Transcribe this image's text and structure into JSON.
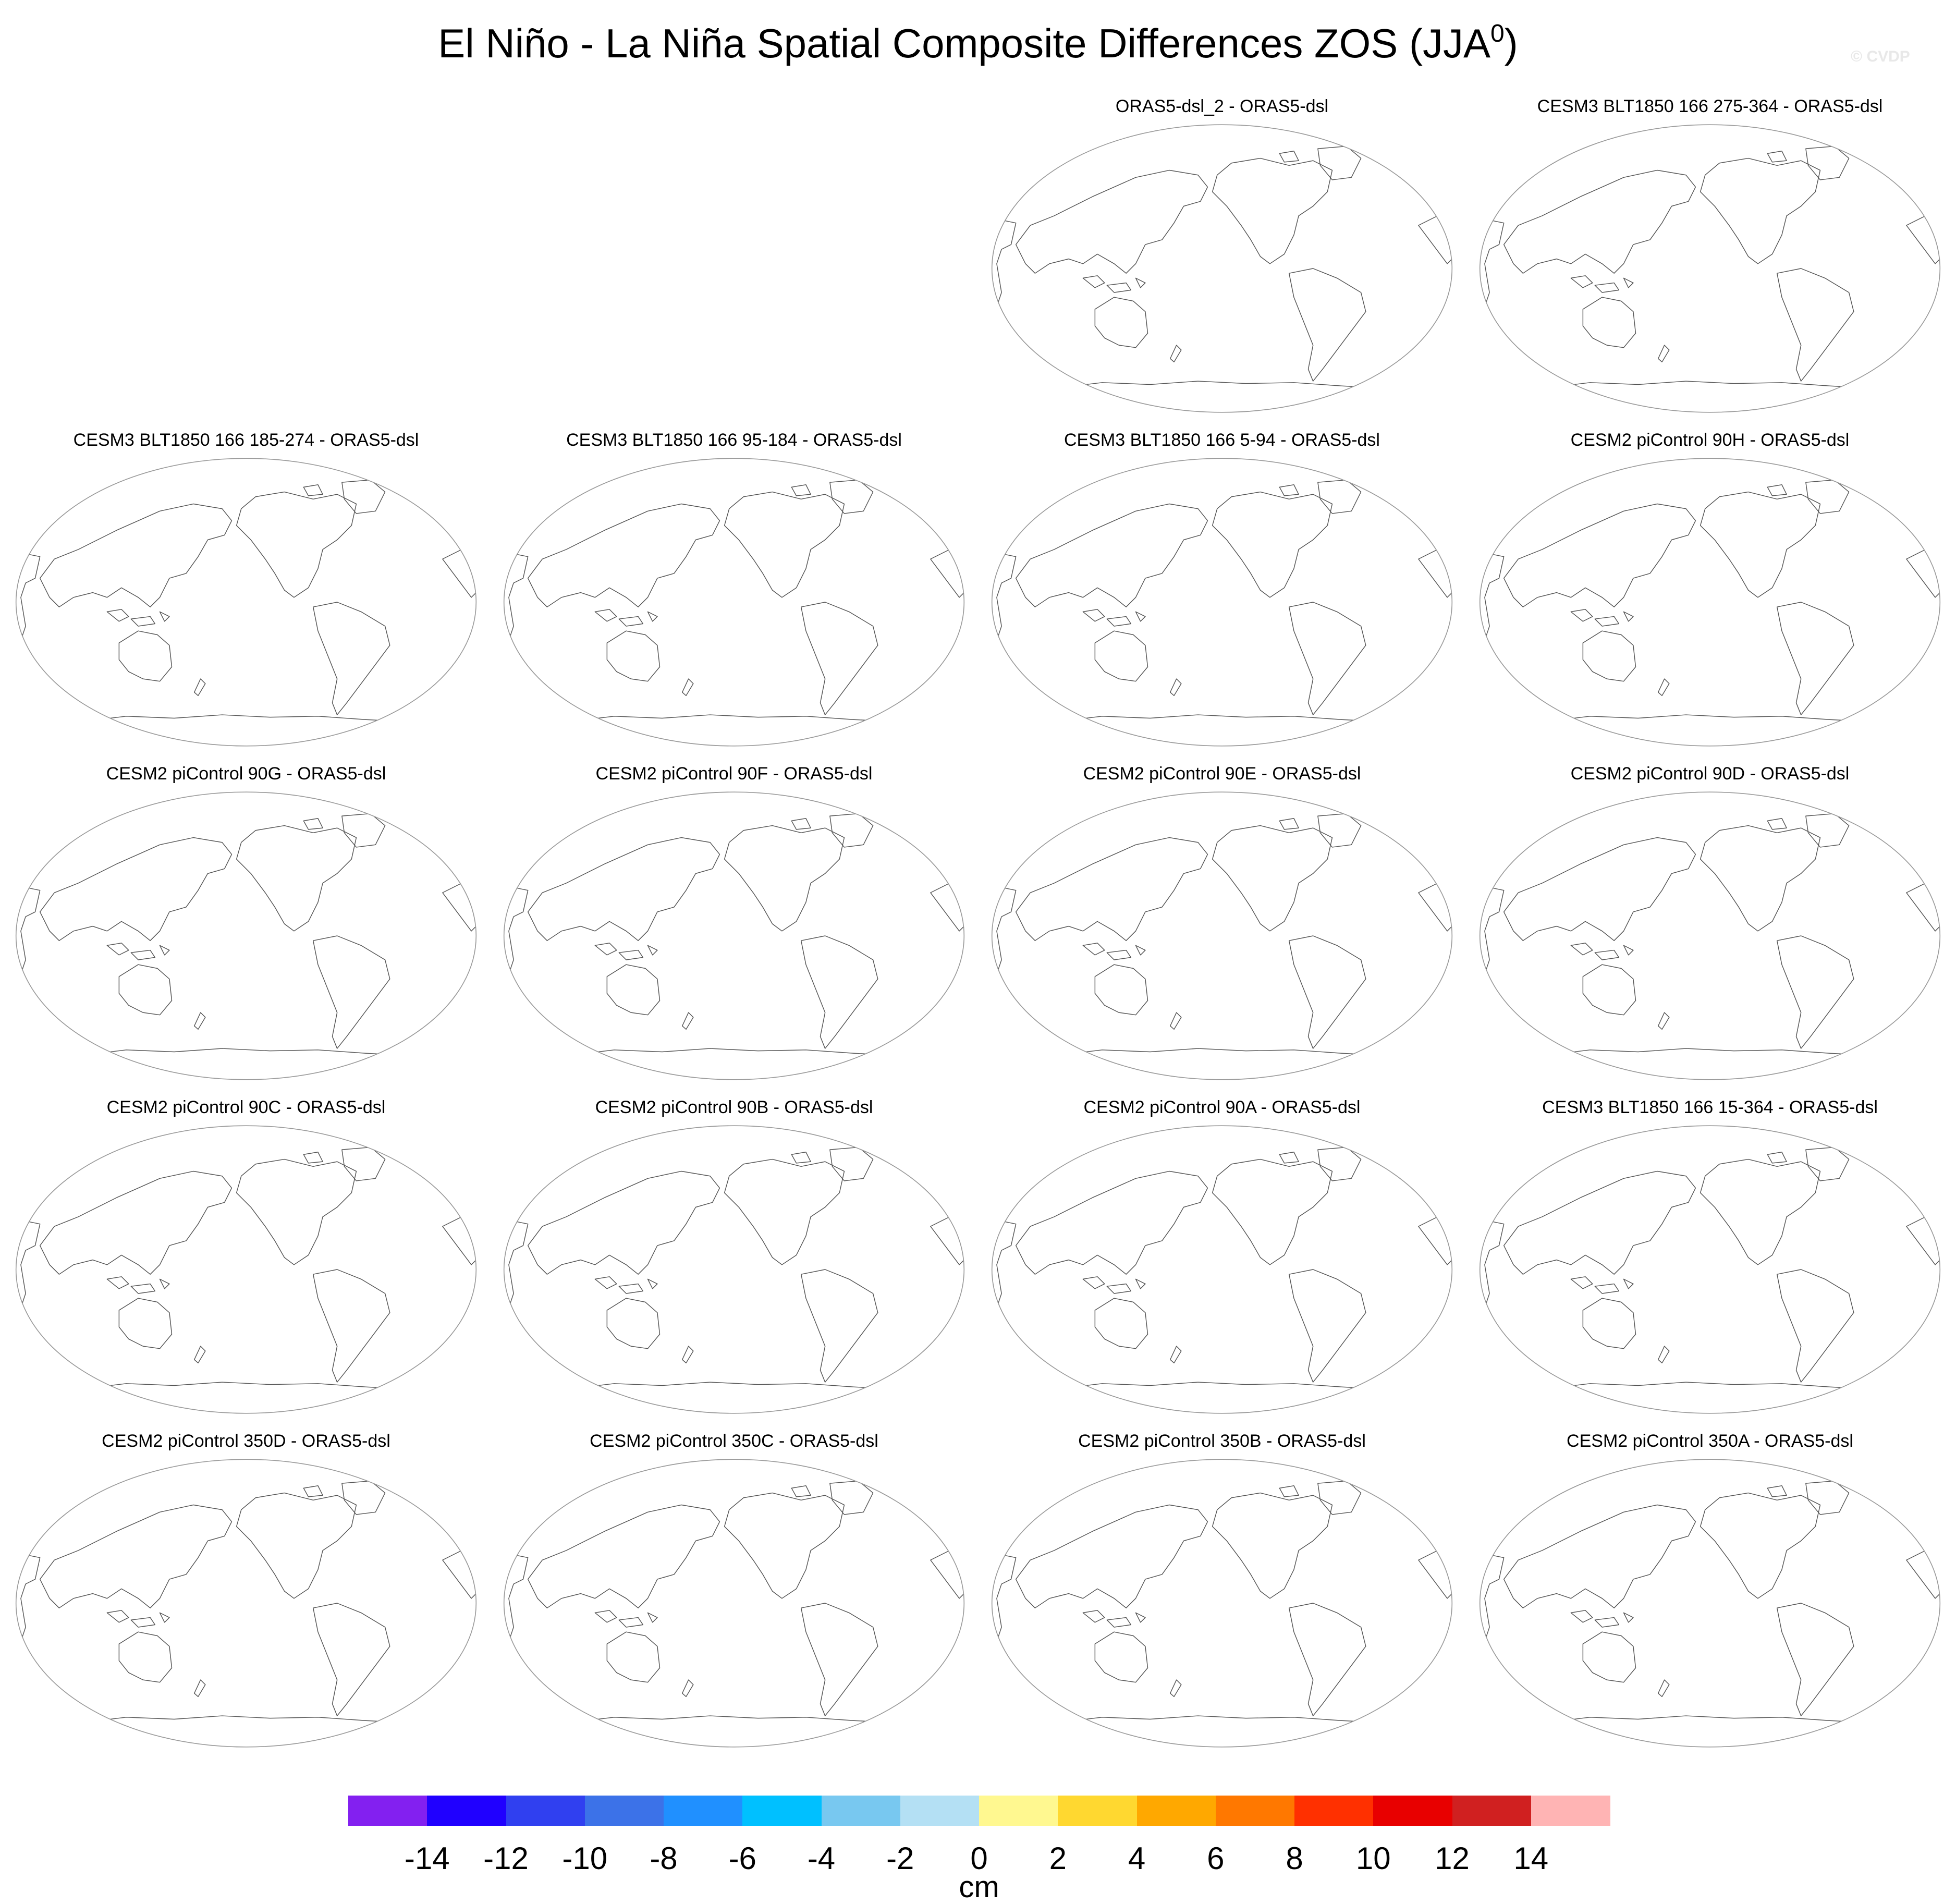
{
  "title": {
    "main": "El Niño - La Niña Spatial Composite Differences ZOS (JJA",
    "sup": "0",
    "close": ")"
  },
  "watermark": "© CVDP",
  "panels": [
    {
      "row": 0,
      "col": 2,
      "title": "ORAS5-dsl_2 - ORAS5-dsl"
    },
    {
      "row": 0,
      "col": 3,
      "title": "CESM3 BLT1850 166 275-364 - ORAS5-dsl"
    },
    {
      "row": 1,
      "col": 0,
      "title": "CESM3 BLT1850 166 185-274 - ORAS5-dsl"
    },
    {
      "row": 1,
      "col": 1,
      "title": "CESM3 BLT1850 166 95-184 - ORAS5-dsl"
    },
    {
      "row": 1,
      "col": 2,
      "title": "CESM3 BLT1850 166 5-94 - ORAS5-dsl"
    },
    {
      "row": 1,
      "col": 3,
      "title": "CESM2 piControl 90H - ORAS5-dsl"
    },
    {
      "row": 2,
      "col": 0,
      "title": "CESM2 piControl 90G - ORAS5-dsl"
    },
    {
      "row": 2,
      "col": 1,
      "title": "CESM2 piControl 90F - ORAS5-dsl"
    },
    {
      "row": 2,
      "col": 2,
      "title": "CESM2 piControl 90E - ORAS5-dsl"
    },
    {
      "row": 2,
      "col": 3,
      "title": "CESM2 piControl 90D - ORAS5-dsl"
    },
    {
      "row": 3,
      "col": 0,
      "title": "CESM2 piControl 90C - ORAS5-dsl"
    },
    {
      "row": 3,
      "col": 1,
      "title": "CESM2 piControl 90B - ORAS5-dsl"
    },
    {
      "row": 3,
      "col": 2,
      "title": "CESM2 piControl 90A - ORAS5-dsl"
    },
    {
      "row": 3,
      "col": 3,
      "title": "CESM3 BLT1850 166 15-364 - ORAS5-dsl"
    },
    {
      "row": 4,
      "col": 0,
      "title": "CESM2 piControl 350D - ORAS5-dsl"
    },
    {
      "row": 4,
      "col": 1,
      "title": "CESM2 piControl 350C - ORAS5-dsl"
    },
    {
      "row": 4,
      "col": 2,
      "title": "CESM2 piControl 350B - ORAS5-dsl"
    },
    {
      "row": 4,
      "col": 3,
      "title": "CESM2 piControl 350A - ORAS5-dsl"
    }
  ],
  "colorbar": {
    "colors": [
      "#8320f0",
      "#2000ff",
      "#3040f0",
      "#3c72e8",
      "#2090ff",
      "#00c0ff",
      "#78c8f0",
      "#b4e0f4",
      "#fff890",
      "#ffd830",
      "#ffa800",
      "#ff7800",
      "#ff3000",
      "#e80000",
      "#d02020",
      "#ffb4b4"
    ],
    "labels": [
      "-14",
      "-12",
      "-10",
      "-8",
      "-6",
      "-4",
      "-2",
      "0",
      "2",
      "4",
      "6",
      "8",
      "10",
      "12",
      "14"
    ],
    "units": "cm"
  }
}
